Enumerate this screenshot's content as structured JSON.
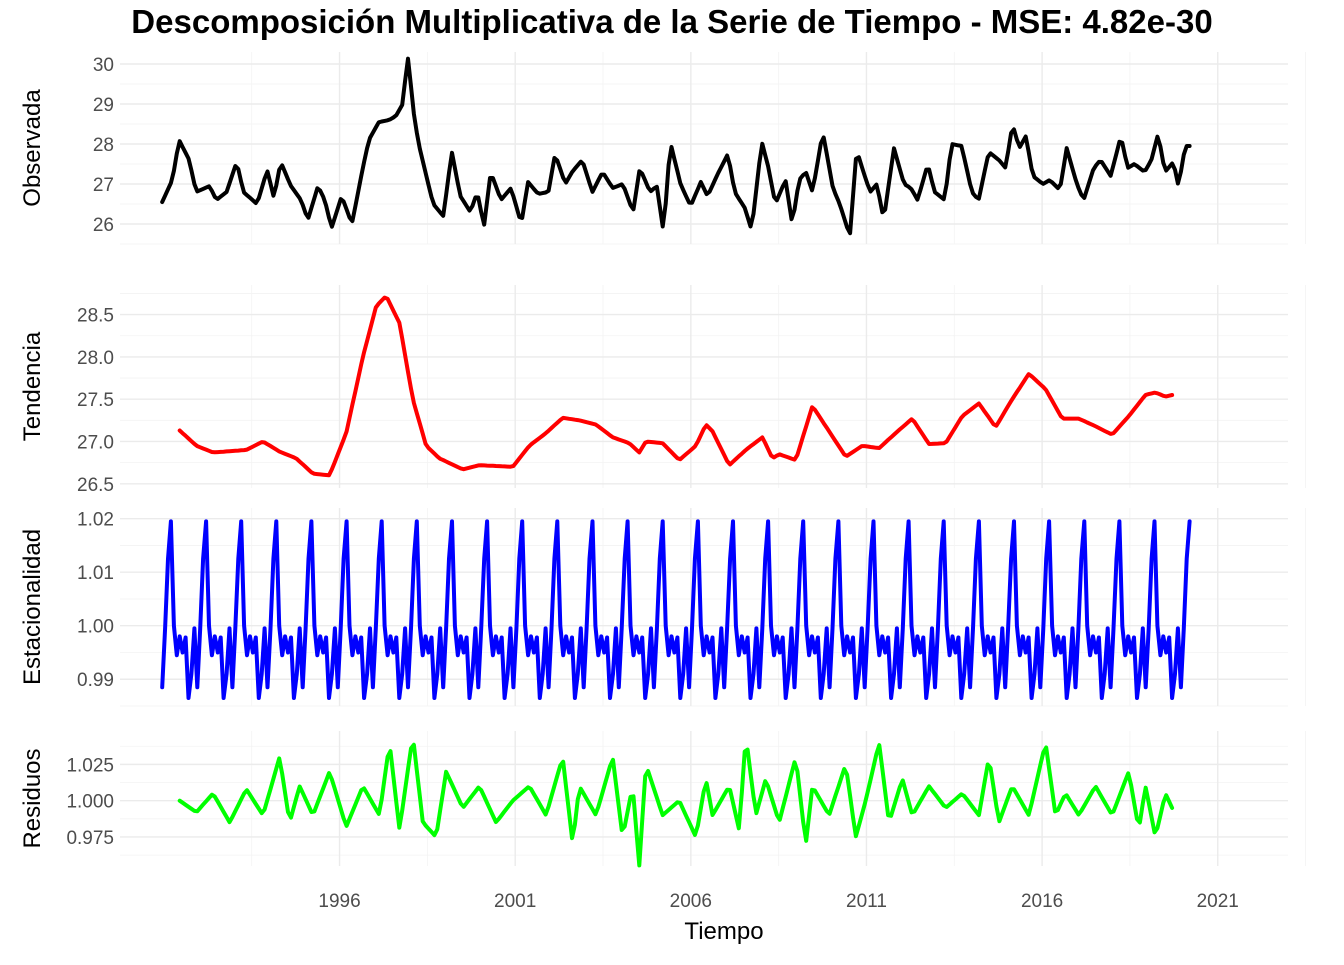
{
  "chart_data": {
    "type": "line",
    "title": "Descomposición Multiplicativa de la Serie de Tiempo - MSE: 4.82e-30",
    "xlabel": "Tiempo",
    "x_ticks": [
      "1996",
      "2001",
      "2006",
      "2011",
      "2016",
      "2021"
    ],
    "x_range": [
      "1992-01",
      "2021-04"
    ],
    "grid": true,
    "panels": [
      {
        "name": "Observada",
        "ylabel": "Observada",
        "color": "#000000",
        "ylim": [
          25.5,
          30.3
        ],
        "y_ticks": [
          "26",
          "27",
          "28",
          "29",
          "30"
        ],
        "x_start": "1992-01",
        "x_end": "2021-04",
        "anchors": [
          [
            1992.0,
            26.55
          ],
          [
            1992.3,
            27.1
          ],
          [
            1992.5,
            28.1
          ],
          [
            1992.8,
            27.6
          ],
          [
            1993.0,
            26.8
          ],
          [
            1993.4,
            26.95
          ],
          [
            1993.6,
            26.6
          ],
          [
            1993.9,
            26.8
          ],
          [
            1994.2,
            27.55
          ],
          [
            1994.4,
            26.8
          ],
          [
            1994.8,
            26.5
          ],
          [
            1995.1,
            27.35
          ],
          [
            1995.3,
            26.65
          ],
          [
            1995.5,
            27.55
          ],
          [
            1995.8,
            26.95
          ],
          [
            1996.1,
            26.6
          ],
          [
            1996.3,
            26.1
          ],
          [
            1996.6,
            26.95
          ],
          [
            1996.8,
            26.6
          ],
          [
            1997.0,
            25.9
          ],
          [
            1997.3,
            26.7
          ],
          [
            1997.6,
            26.0
          ],
          [
            1997.9,
            27.3
          ],
          [
            1998.1,
            28.1
          ],
          [
            1998.4,
            28.55
          ],
          [
            1998.7,
            28.6
          ],
          [
            1998.9,
            28.7
          ],
          [
            1999.1,
            29.0
          ],
          [
            1999.25,
            30.2
          ],
          [
            1999.45,
            28.6
          ],
          [
            1999.6,
            27.9
          ],
          [
            1999.8,
            27.2
          ],
          [
            2000.0,
            26.5
          ],
          [
            2000.3,
            26.2
          ],
          [
            2000.55,
            27.8
          ],
          [
            2000.8,
            26.7
          ],
          [
            2001.1,
            26.3
          ],
          [
            2001.3,
            26.8
          ],
          [
            2001.5,
            25.95
          ],
          [
            2001.7,
            27.3
          ],
          [
            2002.0,
            26.6
          ],
          [
            2002.3,
            26.9
          ],
          [
            2002.6,
            26.0
          ],
          [
            2002.8,
            27.05
          ],
          [
            2003.1,
            26.75
          ],
          [
            2003.4,
            26.8
          ],
          [
            2003.6,
            27.75
          ],
          [
            2003.9,
            27.0
          ],
          [
            2004.1,
            27.3
          ],
          [
            2004.4,
            27.6
          ],
          [
            2004.7,
            26.8
          ],
          [
            2005.0,
            27.3
          ],
          [
            2005.3,
            26.9
          ],
          [
            2005.6,
            27.0
          ],
          [
            2005.9,
            26.3
          ],
          [
            2006.1,
            27.4
          ],
          [
            2006.4,
            26.8
          ],
          [
            2006.6,
            26.95
          ],
          [
            2006.8,
            25.8
          ],
          [
            2007.0,
            28.05
          ],
          [
            2007.3,
            27.0
          ],
          [
            2007.6,
            26.45
          ],
          [
            2007.9,
            27.05
          ],
          [
            2008.1,
            26.7
          ],
          [
            2008.4,
            27.25
          ],
          [
            2008.7,
            27.75
          ],
          [
            2008.9,
            26.8
          ],
          [
            2009.2,
            26.4
          ],
          [
            2009.4,
            25.85
          ],
          [
            2009.7,
            28.05
          ],
          [
            2009.9,
            27.4
          ],
          [
            2010.1,
            26.5
          ],
          [
            2010.4,
            27.1
          ],
          [
            2010.6,
            26.0
          ],
          [
            2010.8,
            27.1
          ],
          [
            2011.0,
            27.3
          ],
          [
            2011.2,
            26.8
          ],
          [
            2011.5,
            28.3
          ],
          [
            2011.8,
            26.9
          ],
          [
            2012.0,
            26.5
          ],
          [
            2012.3,
            25.7
          ],
          [
            2012.5,
            27.85
          ],
          [
            2012.7,
            27.3
          ],
          [
            2012.9,
            26.8
          ],
          [
            2013.1,
            27.0
          ],
          [
            2013.3,
            26.1
          ],
          [
            2013.6,
            27.9
          ],
          [
            2013.9,
            27.0
          ],
          [
            2014.1,
            26.9
          ],
          [
            2014.3,
            26.6
          ],
          [
            2014.6,
            27.5
          ],
          [
            2014.8,
            26.8
          ],
          [
            2015.1,
            26.6
          ],
          [
            2015.3,
            28.0
          ],
          [
            2015.6,
            27.95
          ],
          [
            2015.9,
            26.8
          ],
          [
            2016.1,
            26.6
          ],
          [
            2016.4,
            27.8
          ],
          [
            2016.7,
            27.6
          ],
          [
            2016.9,
            27.4
          ],
          [
            2017.1,
            28.5
          ],
          [
            2017.3,
            27.9
          ],
          [
            2017.5,
            28.2
          ],
          [
            2017.7,
            27.2
          ],
          [
            2018.0,
            27.0
          ],
          [
            2018.2,
            27.1
          ],
          [
            2018.5,
            26.85
          ],
          [
            2018.7,
            27.9
          ],
          [
            2019.0,
            27.0
          ],
          [
            2019.2,
            26.6
          ],
          [
            2019.5,
            27.4
          ],
          [
            2019.7,
            27.6
          ],
          [
            2020.0,
            27.2
          ],
          [
            2020.3,
            28.2
          ],
          [
            2020.5,
            27.4
          ],
          [
            2020.7,
            27.5
          ],
          [
            2021.0,
            27.3
          ],
          [
            2021.2,
            27.6
          ],
          [
            2021.4,
            28.25
          ],
          [
            2021.6,
            27.3
          ],
          [
            2021.85,
            27.55
          ],
          [
            2022.0,
            26.95
          ],
          [
            2022.2,
            27.95
          ],
          [
            2022.33,
            27.95
          ]
        ]
      },
      {
        "name": "Tendencia",
        "ylabel": "Tendencia",
        "color": "#ff0000",
        "ylim": [
          26.45,
          28.85
        ],
        "y_ticks": [
          "26.5",
          "27.0",
          "27.5",
          "28.0",
          "28.5"
        ],
        "x_start": "1992-07",
        "x_end": "2020-10",
        "anchors": [
          [
            1993.0,
            27.13
          ],
          [
            1993.5,
            26.95
          ],
          [
            1994.0,
            26.87
          ],
          [
            1995.0,
            26.9
          ],
          [
            1995.5,
            27.0
          ],
          [
            1996.0,
            26.88
          ],
          [
            1996.5,
            26.8
          ],
          [
            1997.0,
            26.62
          ],
          [
            1997.5,
            26.6
          ],
          [
            1998.0,
            27.1
          ],
          [
            1998.5,
            28.0
          ],
          [
            1998.9,
            28.6
          ],
          [
            1999.2,
            28.72
          ],
          [
            1999.6,
            28.4
          ],
          [
            2000.0,
            27.5
          ],
          [
            2000.4,
            26.95
          ],
          [
            2000.8,
            26.8
          ],
          [
            2001.5,
            26.67
          ],
          [
            2002.0,
            26.72
          ],
          [
            2003.0,
            26.7
          ],
          [
            2003.5,
            26.95
          ],
          [
            2004.0,
            27.1
          ],
          [
            2004.5,
            27.28
          ],
          [
            2005.0,
            27.25
          ],
          [
            2005.5,
            27.2
          ],
          [
            2006.0,
            27.05
          ],
          [
            2006.5,
            26.98
          ],
          [
            2006.8,
            26.87
          ],
          [
            2007.0,
            27.0
          ],
          [
            2007.5,
            26.98
          ],
          [
            2008.0,
            26.78
          ],
          [
            2008.5,
            26.95
          ],
          [
            2008.8,
            27.2
          ],
          [
            2009.0,
            27.12
          ],
          [
            2009.5,
            26.72
          ],
          [
            2010.0,
            26.9
          ],
          [
            2010.5,
            27.05
          ],
          [
            2010.8,
            26.8
          ],
          [
            2011.0,
            26.85
          ],
          [
            2011.5,
            26.78
          ],
          [
            2012.0,
            27.42
          ],
          [
            2012.5,
            27.12
          ],
          [
            2013.0,
            26.82
          ],
          [
            2013.5,
            26.95
          ],
          [
            2014.0,
            26.92
          ],
          [
            2014.5,
            27.1
          ],
          [
            2015.0,
            27.27
          ],
          [
            2015.5,
            26.97
          ],
          [
            2016.0,
            26.98
          ],
          [
            2016.5,
            27.3
          ],
          [
            2017.0,
            27.45
          ],
          [
            2017.5,
            27.17
          ],
          [
            2018.0,
            27.5
          ],
          [
            2018.5,
            27.8
          ],
          [
            2019.0,
            27.62
          ],
          [
            2019.5,
            27.27
          ],
          [
            2020.0,
            27.27
          ],
          [
            2020.5,
            27.18
          ],
          [
            2021.0,
            27.08
          ],
          [
            2021.5,
            27.3
          ],
          [
            2022.0,
            27.55
          ],
          [
            2022.3,
            27.58
          ],
          [
            2022.6,
            27.53
          ],
          [
            2022.8,
            27.55
          ]
        ]
      },
      {
        "name": "Estacionalidad",
        "ylabel": "Estacionalidad",
        "color": "#0000ff",
        "ylim": [
          0.985,
          1.022
        ],
        "y_ticks": [
          "0.99",
          "1.00",
          "1.01",
          "1.02"
        ],
        "x_start": "1992-01",
        "x_end": "2021-04",
        "seasonal_pattern": [
          0.9885,
          0.9995,
          1.0125,
          1.0195,
          1.0,
          0.9945,
          0.998,
          0.995,
          0.9978,
          0.9865,
          0.991,
          0.9995
        ]
      },
      {
        "name": "Residuos",
        "ylabel": "Residuos",
        "color": "#00ff00",
        "ylim": [
          0.955,
          1.048
        ],
        "y_ticks": [
          "0.975",
          "1.000",
          "1.025"
        ],
        "x_start": "1992-07",
        "x_end": "2020-10",
        "anchors": [
          [
            1993.0,
            1.0
          ],
          [
            1993.5,
            0.992
          ],
          [
            1994.0,
            1.005
          ],
          [
            1994.5,
            0.985
          ],
          [
            1995.0,
            1.008
          ],
          [
            1995.5,
            0.99
          ],
          [
            1996.0,
            1.03
          ],
          [
            1996.3,
            0.985
          ],
          [
            1996.6,
            1.01
          ],
          [
            1997.0,
            0.99
          ],
          [
            1997.5,
            1.02
          ],
          [
            1998.0,
            0.982
          ],
          [
            1998.5,
            1.01
          ],
          [
            1999.0,
            0.99
          ],
          [
            1999.3,
            1.04
          ],
          [
            1999.6,
            0.98
          ],
          [
            2000.0,
            1.045
          ],
          [
            2000.3,
            0.985
          ],
          [
            2000.7,
            0.975
          ],
          [
            2001.0,
            1.02
          ],
          [
            2001.5,
            0.995
          ],
          [
            2002.0,
            1.01
          ],
          [
            2002.5,
            0.985
          ],
          [
            2003.0,
            1.0
          ],
          [
            2003.5,
            1.01
          ],
          [
            2004.0,
            0.99
          ],
          [
            2004.5,
            1.03
          ],
          [
            2004.8,
            0.97
          ],
          [
            2005.0,
            1.01
          ],
          [
            2005.5,
            0.99
          ],
          [
            2006.0,
            1.03
          ],
          [
            2006.3,
            0.975
          ],
          [
            2006.6,
            1.01
          ],
          [
            2006.8,
            0.955
          ],
          [
            2007.0,
            1.025
          ],
          [
            2007.5,
            0.99
          ],
          [
            2008.0,
            1.0
          ],
          [
            2008.5,
            0.975
          ],
          [
            2008.8,
            1.015
          ],
          [
            2009.0,
            0.99
          ],
          [
            2009.5,
            1.01
          ],
          [
            2009.8,
            0.98
          ],
          [
            2010.0,
            1.045
          ],
          [
            2010.3,
            0.99
          ],
          [
            2010.6,
            1.015
          ],
          [
            2011.0,
            0.985
          ],
          [
            2011.5,
            1.03
          ],
          [
            2011.8,
            0.97
          ],
          [
            2012.0,
            1.01
          ],
          [
            2012.5,
            0.99
          ],
          [
            2013.0,
            1.025
          ],
          [
            2013.3,
            0.975
          ],
          [
            2013.6,
            1.0
          ],
          [
            2014.0,
            1.04
          ],
          [
            2014.3,
            0.985
          ],
          [
            2014.7,
            1.015
          ],
          [
            2015.0,
            0.99
          ],
          [
            2015.5,
            1.01
          ],
          [
            2016.0,
            0.995
          ],
          [
            2016.5,
            1.005
          ],
          [
            2017.0,
            0.99
          ],
          [
            2017.3,
            1.03
          ],
          [
            2017.6,
            0.985
          ],
          [
            2018.0,
            1.01
          ],
          [
            2018.5,
            0.99
          ],
          [
            2019.0,
            1.04
          ],
          [
            2019.3,
            0.99
          ],
          [
            2019.6,
            1.005
          ],
          [
            2020.0,
            0.99
          ],
          [
            2020.5,
            1.01
          ],
          [
            2021.0,
            0.99
          ],
          [
            2021.5,
            1.02
          ],
          [
            2021.8,
            0.98
          ],
          [
            2022.0,
            1.01
          ],
          [
            2022.3,
            0.975
          ],
          [
            2022.6,
            1.005
          ],
          [
            2022.8,
            0.995
          ]
        ]
      }
    ]
  }
}
